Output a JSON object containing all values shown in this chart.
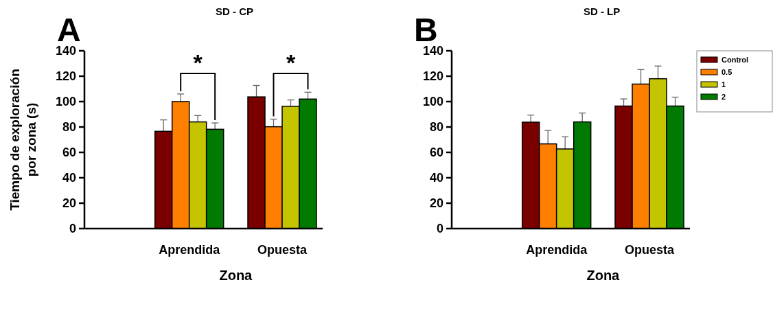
{
  "chart_data": [
    {
      "type": "bar",
      "title": "SD - CP",
      "ylabel": "Tiempo de exploración\npor zona (s)",
      "xlabel": "Zona",
      "categories": [
        "Aprendida",
        "Opuesta"
      ],
      "ylim": [
        0,
        140
      ],
      "yticks": [
        0,
        20,
        40,
        60,
        80,
        100,
        120,
        140
      ],
      "legend": false,
      "annotations": [
        "A",
        {
          "text": "*",
          "x": "Aprendida",
          "y": 100
        },
        {
          "text": "*",
          "x": "Opuesta",
          "y": 80.2
        }
      ],
      "series": [
        {
          "color": "#7a0000",
          "values": [
            76.6,
            103.7
          ],
          "errors": [
            9,
            9
          ]
        },
        {
          "color": "#ff8000",
          "values": [
            100,
            80.2
          ],
          "errors": [
            6,
            6
          ]
        },
        {
          "color": "#c4c400",
          "values": [
            84,
            96.3
          ],
          "errors": [
            5,
            5
          ]
        },
        {
          "color": "#007a00",
          "values": [
            78.2,
            102
          ],
          "errors": [
            5,
            5.4
          ]
        }
      ]
    },
    {
      "type": "bar",
      "title": "SD - LP",
      "xlabel": "Zona",
      "categories": [
        "Aprendida",
        "Opuesta"
      ],
      "ylim": [
        0,
        140
      ],
      "yticks": [
        0,
        20,
        40,
        60,
        80,
        100,
        120,
        140
      ],
      "legend": "top right",
      "annotations": [
        "B"
      ],
      "series": [
        {
          "name": "Control",
          "color": "#7a0000",
          "values": [
            83.8,
            96.5
          ],
          "errors": [
            5.6,
            5.6
          ]
        },
        {
          "name": "0.5",
          "color": "#ff8000",
          "values": [
            66.7,
            113.8
          ],
          "errors": [
            10.7,
            11.4
          ]
        },
        {
          "name": "1",
          "color": "#c4c400",
          "values": [
            62.7,
            118
          ],
          "errors": [
            9.6,
            10
          ]
        },
        {
          "name": "2",
          "color": "#007a00",
          "values": [
            84,
            96.5
          ],
          "errors": [
            7,
            7
          ]
        }
      ]
    }
  ]
}
